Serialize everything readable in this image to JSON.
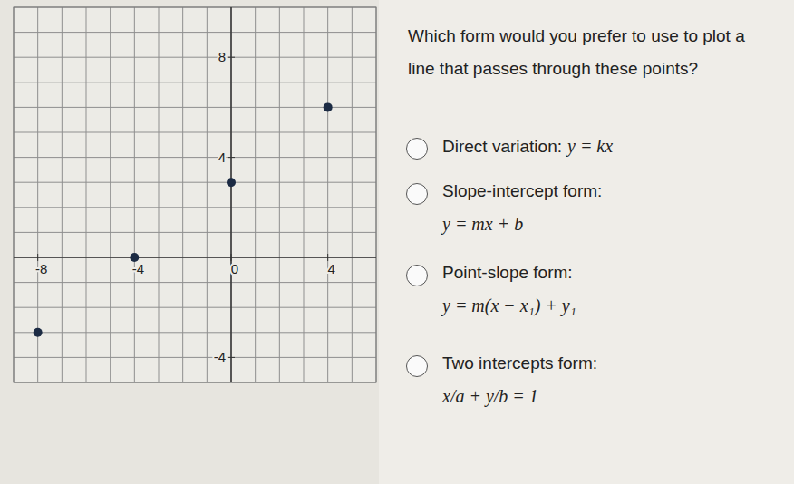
{
  "chart_data": {
    "type": "scatter",
    "x": [
      -8,
      -4,
      0,
      4
    ],
    "y": [
      -3,
      0,
      3,
      6
    ],
    "xlim": [
      -9,
      6
    ],
    "ylim": [
      -5,
      10
    ],
    "xticks": [
      -8,
      -4,
      0,
      4
    ],
    "yticks": [
      -4,
      4,
      8
    ],
    "grid": true,
    "color": "#1c2b44",
    "marker": "circle"
  },
  "question": "Which form would you prefer to use to plot a line that passes through these points?",
  "options": [
    {
      "label": "Direct variation:",
      "formula": "y = kx"
    },
    {
      "label": "Slope-intercept form:",
      "formula": "y = mx + b"
    },
    {
      "label": "Point-slope form:",
      "formula": "y = m(x − x₁) + y₁"
    },
    {
      "label": "Two intercepts form:",
      "formula": "x/a + y/b = 1"
    }
  ]
}
